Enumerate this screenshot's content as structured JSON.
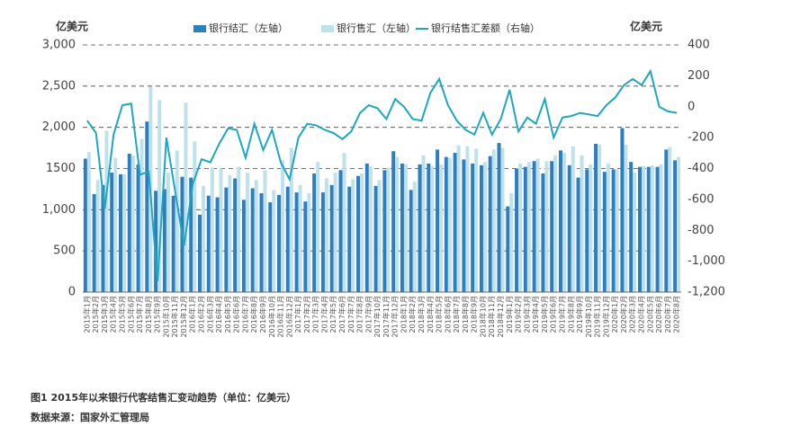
{
  "chart_data": {
    "type": "bar-line",
    "y_label": "亿美元",
    "y2_label": "亿美元",
    "caption": "图1  2015年以来银行代客结售汇变动趋势（单位：亿美元）",
    "source": "数据来源：国家外汇管理局",
    "categories": [
      "2015年1月",
      "2015年2月",
      "2015年3月",
      "2015年4月",
      "2015年5月",
      "2015年6月",
      "2015年7月",
      "2015年8月",
      "2015年9月",
      "2015年10月",
      "2015年11月",
      "2015年12月",
      "2016年1月",
      "2016年2月",
      "2016年3月",
      "2016年4月",
      "2016年5月",
      "2016年6月",
      "2016年7月",
      "2016年8月",
      "2016年9月",
      "2016年10月",
      "2016年11月",
      "2016年12月",
      "2017年1月",
      "2017年2月",
      "2017年3月",
      "2017年4月",
      "2017年5月",
      "2017年6月",
      "2017年7月",
      "2017年8月",
      "2017年9月",
      "2017年10月",
      "2017年11月",
      "2017年12月",
      "2018年1月",
      "2018年2月",
      "2018年3月",
      "2018年4月",
      "2018年5月",
      "2018年6月",
      "2018年7月",
      "2018年8月",
      "2018年9月",
      "2018年10月",
      "2018年11月",
      "2018年12月",
      "2019年1月",
      "2019年2月",
      "2019年3月",
      "2019年4月",
      "2019年5月",
      "2019年6月",
      "2019年7月",
      "2019年8月",
      "2019年9月",
      "2019年10月",
      "2019年11月",
      "2019年12月",
      "2020年1月",
      "2020年2月",
      "2020年3月",
      "2020年4月",
      "2020年5月",
      "2020年6月",
      "2020年7月",
      "2020年8月"
    ],
    "series": [
      {
        "name": "银行结汇（左轴）",
        "type": "bar",
        "color": "#2e7dbf",
        "values": [
          1620,
          1190,
          1300,
          1450,
          1430,
          1680,
          1550,
          2070,
          1230,
          1250,
          1170,
          1400,
          1390,
          940,
          1170,
          1150,
          1270,
          1380,
          1120,
          1260,
          1200,
          1090,
          1180,
          1280,
          1210,
          1100,
          1440,
          1210,
          1300,
          1480,
          1280,
          1410,
          1560,
          1290,
          1480,
          1710,
          1560,
          1240,
          1550,
          1560,
          1730,
          1640,
          1690,
          1610,
          1560,
          1540,
          1650,
          1810,
          1040,
          1500,
          1520,
          1590,
          1440,
          1590,
          1720,
          1540,
          1390,
          1490,
          1800,
          1460,
          1490,
          1990,
          1580,
          1520,
          1520,
          1520,
          1730,
          1600
        ]
      },
      {
        "name": "银行售汇（左轴）",
        "type": "bar",
        "color": "#bfe2ea",
        "values": [
          1700,
          1360,
          1960,
          1630,
          1430,
          1660,
          1860,
          2490,
          2330,
          1450,
          1720,
          2300,
          1830,
          1290,
          1510,
          1500,
          1420,
          1520,
          1450,
          1360,
          1480,
          1240,
          1600,
          1750,
          1300,
          1200,
          1580,
          1380,
          1450,
          1690,
          1370,
          1440,
          1530,
          1360,
          1510,
          1640,
          1550,
          1340,
          1660,
          1530,
          1550,
          1630,
          1780,
          1770,
          1740,
          1580,
          1730,
          1750,
          1200,
          1560,
          1580,
          1620,
          1590,
          1660,
          1690,
          1770,
          1660,
          1550,
          1790,
          1560,
          1490,
          1790,
          1450,
          1530,
          1540,
          1550,
          1760,
          1640
        ]
      },
      {
        "name": "银行结售汇差额（右轴）",
        "type": "line",
        "axis": "y2",
        "color": "#1ba8c0",
        "values": [
          -90,
          -170,
          -660,
          -180,
          10,
          20,
          -440,
          -420,
          -1130,
          -200,
          -550,
          -900,
          -500,
          -340,
          -360,
          -240,
          -140,
          -150,
          -330,
          -110,
          -280,
          -150,
          -360,
          -470,
          -200,
          -110,
          -120,
          -150,
          -170,
          -210,
          -160,
          -40,
          10,
          -10,
          -80,
          50,
          0,
          -80,
          -90,
          90,
          180,
          10,
          -90,
          -150,
          -180,
          -40,
          -180,
          -80,
          110,
          -160,
          -70,
          -110,
          50,
          -200,
          -70,
          -60,
          -40,
          -50,
          -60,
          10,
          60,
          140,
          180,
          140,
          230,
          0,
          -30,
          -40
        ]
      }
    ],
    "ylim": [
      0,
      3000
    ],
    "yticks": [
      0,
      500,
      {
        "value": 1000,
        "label": "1,000"
      },
      1500,
      {
        "value": 2000,
        "label": "2,000"
      },
      {
        "value": 2500,
        "label": "2,500"
      },
      {
        "value": 3000,
        "label": "3,000"
      }
    ],
    "y2lim": [
      -1200,
      400
    ],
    "y2ticks": [
      {
        "value": -1200,
        "label": "-1,200"
      },
      {
        "value": -1000,
        "label": "-1,000"
      },
      -800,
      -600,
      -400,
      -200,
      0,
      200,
      400
    ],
    "grid": true
  }
}
